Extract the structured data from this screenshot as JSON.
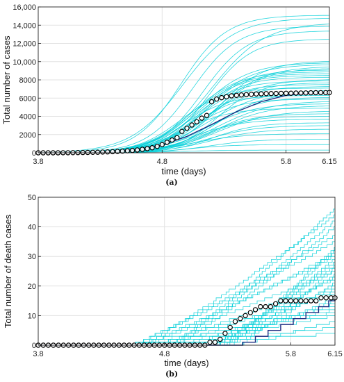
{
  "chart_data": [
    {
      "id": "a",
      "type": "line",
      "caption": "(a)",
      "xlabel": "time (days)",
      "ylabel": "Total number of cases",
      "xlim": [
        3.8,
        6.15
      ],
      "ylim": [
        0,
        16000
      ],
      "xticks": [
        3.8,
        4.8,
        5.8,
        6.15
      ],
      "xtick_labels": [
        "3.8",
        "4.8",
        "5.8",
        "6.15"
      ],
      "yticks": [
        0,
        2000,
        4000,
        6000,
        8000,
        10000,
        12000,
        14000,
        16000
      ],
      "ytick_labels": [
        "0",
        "2000",
        "4000",
        "6000",
        "8000",
        "10,000",
        "12,000",
        "14,000",
        "16,000"
      ],
      "grid": true,
      "colors": {
        "simulations": "#00cfd8",
        "mean": "#1b2a80",
        "observed_marker": "#000000"
      },
      "simulation_envelope": {
        "description_final_values": [
          300,
          900,
          1500,
          2100,
          2600,
          3000,
          3300,
          3700,
          4000,
          4300,
          4600,
          4900,
          5200,
          5400,
          5700,
          5900,
          6100,
          6300,
          6500,
          6700,
          6900,
          7100,
          7300,
          7500,
          7700,
          7900,
          8100,
          8300,
          8500,
          8700,
          8900,
          9100,
          9300,
          9500,
          9700,
          9900,
          10100,
          12500,
          13400,
          13900,
          14300,
          14800,
          15100
        ]
      },
      "mean_curve": {
        "x": [
          3.8,
          4.0,
          4.2,
          4.4,
          4.6,
          4.8,
          5.0,
          5.2,
          5.4,
          5.6,
          5.8,
          6.0,
          6.15
        ],
        "y": [
          0,
          10,
          40,
          130,
          350,
          850,
          1800,
          3100,
          4500,
          5600,
          6300,
          6550,
          6600
        ]
      },
      "observed": {
        "x": [
          3.8,
          3.84,
          3.88,
          3.92,
          3.96,
          4.0,
          4.04,
          4.08,
          4.12,
          4.16,
          4.2,
          4.24,
          4.28,
          4.32,
          4.36,
          4.4,
          4.44,
          4.48,
          4.52,
          4.56,
          4.6,
          4.64,
          4.68,
          4.72,
          4.76,
          4.8,
          4.84,
          4.88,
          4.92,
          4.96,
          5.0,
          5.04,
          5.08,
          5.12,
          5.16,
          5.2,
          5.24,
          5.28,
          5.32,
          5.36,
          5.4,
          5.44,
          5.48,
          5.52,
          5.56,
          5.6,
          5.64,
          5.68,
          5.72,
          5.76,
          5.8,
          5.84,
          5.88,
          5.92,
          5.96,
          6.0,
          6.04,
          6.08,
          6.12,
          6.15
        ],
        "y": [
          0,
          0,
          0,
          0,
          0,
          5,
          10,
          15,
          20,
          30,
          40,
          50,
          60,
          80,
          100,
          120,
          150,
          180,
          220,
          260,
          310,
          380,
          460,
          560,
          700,
          900,
          1150,
          1400,
          1650,
          2350,
          2700,
          3050,
          3400,
          3800,
          4100,
          5600,
          5900,
          6050,
          6150,
          6250,
          6300,
          6350,
          6380,
          6420,
          6450,
          6470,
          6490,
          6500,
          6510,
          6520,
          6530,
          6540,
          6550,
          6560,
          6570,
          6580,
          6590,
          6600,
          6600,
          6610
        ]
      }
    },
    {
      "id": "b",
      "type": "line",
      "caption": "(b)",
      "xlabel": "time (days)",
      "ylabel": "Total number of death cases",
      "xlim": [
        3.8,
        6.15
      ],
      "ylim": [
        0,
        50
      ],
      "xticks": [
        3.8,
        4.8,
        5.8,
        6.15
      ],
      "xtick_labels": [
        "3.8",
        "4.8",
        "5.8",
        "6.15"
      ],
      "yticks": [
        0,
        10,
        20,
        30,
        40,
        50
      ],
      "ytick_labels": [
        "0",
        "10",
        "20",
        "30",
        "40",
        "50"
      ],
      "grid": true,
      "colors": {
        "simulations": "#00cfd8",
        "mean": "#1b2a80",
        "observed_marker": "#000000"
      },
      "simulation_envelope": {
        "description_final_values": [
          4,
          6,
          8,
          10,
          11,
          12,
          13,
          14,
          15,
          16,
          17,
          18,
          19,
          20,
          21,
          22,
          23,
          24,
          25,
          26,
          27,
          28,
          29,
          30,
          31,
          32,
          33,
          35,
          37,
          40,
          42,
          44,
          46
        ]
      },
      "mean_curve": {
        "x": [
          3.8,
          5.05,
          5.3,
          5.42,
          5.52,
          5.62,
          5.72,
          5.82,
          5.92,
          6.02,
          6.1,
          6.15
        ],
        "y": [
          0,
          0,
          0,
          1,
          3,
          5,
          7,
          9,
          11,
          13,
          15,
          16
        ]
      },
      "observed": {
        "x": [
          3.8,
          3.84,
          3.88,
          3.92,
          3.96,
          4.0,
          4.04,
          4.08,
          4.12,
          4.16,
          4.2,
          4.24,
          4.28,
          4.32,
          4.36,
          4.4,
          4.44,
          4.48,
          4.52,
          4.56,
          4.6,
          4.64,
          4.68,
          4.72,
          4.76,
          4.8,
          4.84,
          4.88,
          4.92,
          4.96,
          5.0,
          5.04,
          5.08,
          5.12,
          5.16,
          5.2,
          5.24,
          5.28,
          5.32,
          5.36,
          5.4,
          5.44,
          5.48,
          5.52,
          5.56,
          5.6,
          5.64,
          5.68,
          5.72,
          5.76,
          5.8,
          5.84,
          5.88,
          5.92,
          5.96,
          6.0,
          6.04,
          6.08,
          6.12,
          6.15
        ],
        "y": [
          0,
          0,
          0,
          0,
          0,
          0,
          0,
          0,
          0,
          0,
          0,
          0,
          0,
          0,
          0,
          0,
          0,
          0,
          0,
          0,
          0,
          0,
          0,
          0,
          0,
          0,
          0,
          0,
          0,
          0,
          0,
          0,
          0,
          0,
          1,
          1,
          2,
          4,
          6,
          8,
          9,
          10,
          11,
          12,
          13,
          13,
          13,
          14,
          15,
          15,
          15,
          15,
          15,
          15,
          15,
          15,
          16,
          16,
          16,
          16
        ]
      }
    }
  ]
}
